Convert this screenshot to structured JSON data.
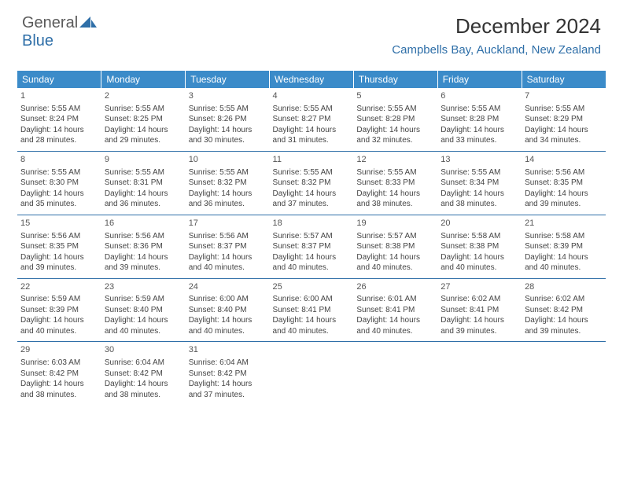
{
  "logo": {
    "part1": "General",
    "part2": "Blue"
  },
  "title": "December 2024",
  "location": "Campbells Bay, Auckland, New Zealand",
  "colors": {
    "header_bg": "#3b8bc9",
    "accent": "#2f6fa8",
    "text": "#333333",
    "logo_gray": "#5a5a5a"
  },
  "weekdays": [
    "Sunday",
    "Monday",
    "Tuesday",
    "Wednesday",
    "Thursday",
    "Friday",
    "Saturday"
  ],
  "weeks": [
    [
      {
        "d": "1",
        "sr": "Sunrise: 5:55 AM",
        "ss": "Sunset: 8:24 PM",
        "dl1": "Daylight: 14 hours",
        "dl2": "and 28 minutes."
      },
      {
        "d": "2",
        "sr": "Sunrise: 5:55 AM",
        "ss": "Sunset: 8:25 PM",
        "dl1": "Daylight: 14 hours",
        "dl2": "and 29 minutes."
      },
      {
        "d": "3",
        "sr": "Sunrise: 5:55 AM",
        "ss": "Sunset: 8:26 PM",
        "dl1": "Daylight: 14 hours",
        "dl2": "and 30 minutes."
      },
      {
        "d": "4",
        "sr": "Sunrise: 5:55 AM",
        "ss": "Sunset: 8:27 PM",
        "dl1": "Daylight: 14 hours",
        "dl2": "and 31 minutes."
      },
      {
        "d": "5",
        "sr": "Sunrise: 5:55 AM",
        "ss": "Sunset: 8:28 PM",
        "dl1": "Daylight: 14 hours",
        "dl2": "and 32 minutes."
      },
      {
        "d": "6",
        "sr": "Sunrise: 5:55 AM",
        "ss": "Sunset: 8:28 PM",
        "dl1": "Daylight: 14 hours",
        "dl2": "and 33 minutes."
      },
      {
        "d": "7",
        "sr": "Sunrise: 5:55 AM",
        "ss": "Sunset: 8:29 PM",
        "dl1": "Daylight: 14 hours",
        "dl2": "and 34 minutes."
      }
    ],
    [
      {
        "d": "8",
        "sr": "Sunrise: 5:55 AM",
        "ss": "Sunset: 8:30 PM",
        "dl1": "Daylight: 14 hours",
        "dl2": "and 35 minutes."
      },
      {
        "d": "9",
        "sr": "Sunrise: 5:55 AM",
        "ss": "Sunset: 8:31 PM",
        "dl1": "Daylight: 14 hours",
        "dl2": "and 36 minutes."
      },
      {
        "d": "10",
        "sr": "Sunrise: 5:55 AM",
        "ss": "Sunset: 8:32 PM",
        "dl1": "Daylight: 14 hours",
        "dl2": "and 36 minutes."
      },
      {
        "d": "11",
        "sr": "Sunrise: 5:55 AM",
        "ss": "Sunset: 8:32 PM",
        "dl1": "Daylight: 14 hours",
        "dl2": "and 37 minutes."
      },
      {
        "d": "12",
        "sr": "Sunrise: 5:55 AM",
        "ss": "Sunset: 8:33 PM",
        "dl1": "Daylight: 14 hours",
        "dl2": "and 38 minutes."
      },
      {
        "d": "13",
        "sr": "Sunrise: 5:55 AM",
        "ss": "Sunset: 8:34 PM",
        "dl1": "Daylight: 14 hours",
        "dl2": "and 38 minutes."
      },
      {
        "d": "14",
        "sr": "Sunrise: 5:56 AM",
        "ss": "Sunset: 8:35 PM",
        "dl1": "Daylight: 14 hours",
        "dl2": "and 39 minutes."
      }
    ],
    [
      {
        "d": "15",
        "sr": "Sunrise: 5:56 AM",
        "ss": "Sunset: 8:35 PM",
        "dl1": "Daylight: 14 hours",
        "dl2": "and 39 minutes."
      },
      {
        "d": "16",
        "sr": "Sunrise: 5:56 AM",
        "ss": "Sunset: 8:36 PM",
        "dl1": "Daylight: 14 hours",
        "dl2": "and 39 minutes."
      },
      {
        "d": "17",
        "sr": "Sunrise: 5:56 AM",
        "ss": "Sunset: 8:37 PM",
        "dl1": "Daylight: 14 hours",
        "dl2": "and 40 minutes."
      },
      {
        "d": "18",
        "sr": "Sunrise: 5:57 AM",
        "ss": "Sunset: 8:37 PM",
        "dl1": "Daylight: 14 hours",
        "dl2": "and 40 minutes."
      },
      {
        "d": "19",
        "sr": "Sunrise: 5:57 AM",
        "ss": "Sunset: 8:38 PM",
        "dl1": "Daylight: 14 hours",
        "dl2": "and 40 minutes."
      },
      {
        "d": "20",
        "sr": "Sunrise: 5:58 AM",
        "ss": "Sunset: 8:38 PM",
        "dl1": "Daylight: 14 hours",
        "dl2": "and 40 minutes."
      },
      {
        "d": "21",
        "sr": "Sunrise: 5:58 AM",
        "ss": "Sunset: 8:39 PM",
        "dl1": "Daylight: 14 hours",
        "dl2": "and 40 minutes."
      }
    ],
    [
      {
        "d": "22",
        "sr": "Sunrise: 5:59 AM",
        "ss": "Sunset: 8:39 PM",
        "dl1": "Daylight: 14 hours",
        "dl2": "and 40 minutes."
      },
      {
        "d": "23",
        "sr": "Sunrise: 5:59 AM",
        "ss": "Sunset: 8:40 PM",
        "dl1": "Daylight: 14 hours",
        "dl2": "and 40 minutes."
      },
      {
        "d": "24",
        "sr": "Sunrise: 6:00 AM",
        "ss": "Sunset: 8:40 PM",
        "dl1": "Daylight: 14 hours",
        "dl2": "and 40 minutes."
      },
      {
        "d": "25",
        "sr": "Sunrise: 6:00 AM",
        "ss": "Sunset: 8:41 PM",
        "dl1": "Daylight: 14 hours",
        "dl2": "and 40 minutes."
      },
      {
        "d": "26",
        "sr": "Sunrise: 6:01 AM",
        "ss": "Sunset: 8:41 PM",
        "dl1": "Daylight: 14 hours",
        "dl2": "and 40 minutes."
      },
      {
        "d": "27",
        "sr": "Sunrise: 6:02 AM",
        "ss": "Sunset: 8:41 PM",
        "dl1": "Daylight: 14 hours",
        "dl2": "and 39 minutes."
      },
      {
        "d": "28",
        "sr": "Sunrise: 6:02 AM",
        "ss": "Sunset: 8:42 PM",
        "dl1": "Daylight: 14 hours",
        "dl2": "and 39 minutes."
      }
    ],
    [
      {
        "d": "29",
        "sr": "Sunrise: 6:03 AM",
        "ss": "Sunset: 8:42 PM",
        "dl1": "Daylight: 14 hours",
        "dl2": "and 38 minutes."
      },
      {
        "d": "30",
        "sr": "Sunrise: 6:04 AM",
        "ss": "Sunset: 8:42 PM",
        "dl1": "Daylight: 14 hours",
        "dl2": "and 38 minutes."
      },
      {
        "d": "31",
        "sr": "Sunrise: 6:04 AM",
        "ss": "Sunset: 8:42 PM",
        "dl1": "Daylight: 14 hours",
        "dl2": "and 37 minutes."
      },
      null,
      null,
      null,
      null
    ]
  ]
}
